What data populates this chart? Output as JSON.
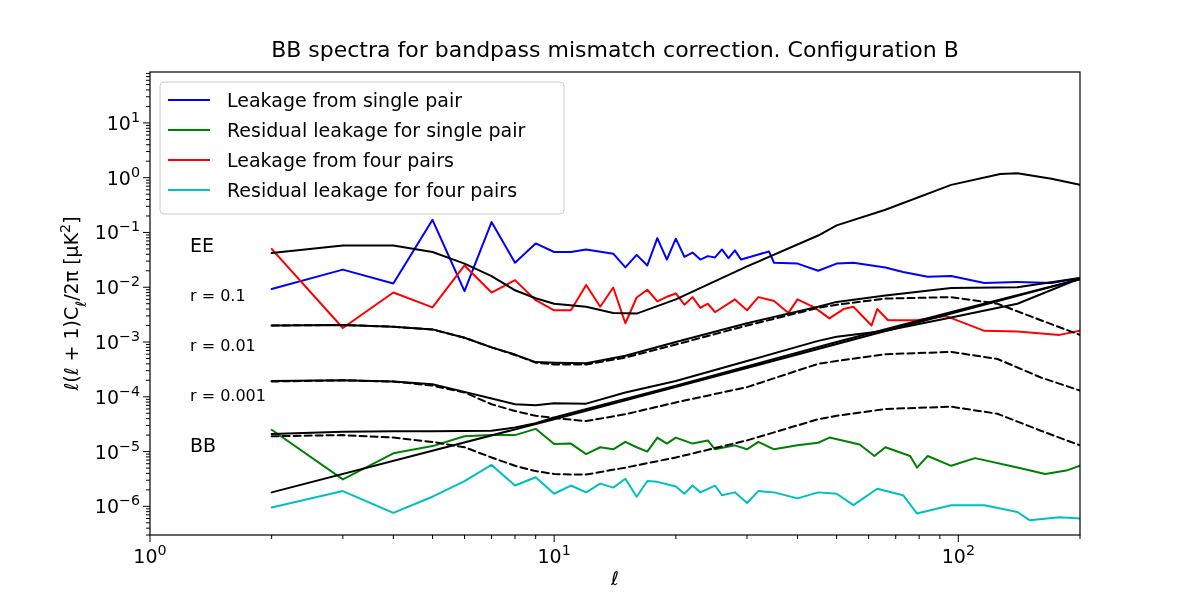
{
  "chart_data": {
    "type": "line",
    "title": "BB spectra for bandpass mismatch correction. Configuration B",
    "xlabel": "ℓ",
    "ylabel": "ℓ(ℓ + 1)C$_{ℓ}$/2π [μK$^{2}$]",
    "log": "xy",
    "grid": false,
    "legend": "top left",
    "marker": "none",
    "xlim": [
      1,
      200
    ],
    "xticks": [
      {
        "value": 1,
        "label": "10$^{0}$"
      },
      {
        "value": 10,
        "label": "10$^{1}$"
      },
      {
        "value": 100,
        "label": "10$^{2}$"
      }
    ],
    "ylim": [
      3e-07,
      85
    ],
    "yticks": [
      {
        "value": 1e-06,
        "label": "10$^{−6}$"
      },
      {
        "value": 1e-05,
        "label": "10$^{−5}$"
      },
      {
        "value": 0.0001,
        "label": "10$^{−4}$"
      },
      {
        "value": 0.001,
        "label": "10$^{−3}$"
      },
      {
        "value": 0.01,
        "label": "10$^{−2}$"
      },
      {
        "value": 0.1,
        "label": "10$^{−1}$"
      },
      {
        "value": 1,
        "label": "10$^{0}$"
      },
      {
        "value": 10,
        "label": "10$^{1}$"
      }
    ],
    "annotations": [
      "EE",
      "r = 0.1",
      "r = 0.01",
      "r = 0.001",
      "BB"
    ],
    "series": [
      {
        "name": "Leakage from single pair",
        "color": "#0000ff",
        "x": [
          2,
          3,
          4,
          5,
          6,
          7,
          8,
          9,
          10,
          11,
          12,
          14,
          15,
          16,
          17,
          18,
          19,
          20,
          21,
          22,
          23,
          24,
          25,
          26,
          27,
          28,
          29,
          34,
          35,
          40,
          45,
          50,
          55,
          66,
          73,
          84,
          96,
          116,
          140,
          170,
          200
        ],
        "values": [
          0.0093,
          0.021,
          0.0117,
          0.17,
          0.0085,
          0.155,
          0.028,
          0.063,
          0.044,
          0.044,
          0.049,
          0.041,
          0.023,
          0.039,
          0.025,
          0.079,
          0.032,
          0.077,
          0.036,
          0.043,
          0.032,
          0.037,
          0.035,
          0.049,
          0.034,
          0.047,
          0.032,
          0.045,
          0.028,
          0.027,
          0.02,
          0.027,
          0.028,
          0.023,
          0.019,
          0.0155,
          0.016,
          0.012,
          0.0125,
          0.012,
          0.0148
        ]
      },
      {
        "name": "Residual leakage for single pair",
        "color": "#008000",
        "x": [
          2,
          3,
          4,
          5,
          6,
          7,
          8,
          9,
          10,
          11,
          12,
          13,
          14,
          15,
          16,
          17,
          18,
          19,
          20,
          22,
          24,
          25,
          28,
          30,
          32,
          35,
          40,
          45,
          48,
          57,
          62,
          66,
          76,
          79,
          84,
          96,
          110,
          140,
          164,
          185,
          200
        ],
        "values": [
          2.5e-05,
          3.1e-06,
          9.3e-06,
          1.26e-05,
          1.9e-05,
          2e-05,
          2e-05,
          2.6e-05,
          1.37e-05,
          1.4e-05,
          9e-06,
          1.2e-05,
          1.1e-05,
          1.5e-05,
          1.2e-05,
          1e-05,
          1.8e-05,
          1.4e-05,
          1.8e-05,
          1.4e-05,
          1.6e-05,
          1.1e-05,
          1.3e-05,
          1.1e-05,
          1.5e-05,
          1.1e-05,
          1.3e-05,
          1.45e-05,
          1.8e-05,
          1.35e-05,
          8.3e-06,
          1.2e-05,
          8.3e-06,
          5.1e-06,
          8.3e-06,
          5.5e-06,
          7.6e-06,
          5.1e-06,
          3.9e-06,
          4.5e-06,
          5.5e-06
        ]
      },
      {
        "name": "Leakage from four pairs",
        "color": "#ff0000",
        "x": [
          2,
          3,
          4,
          5,
          6,
          7,
          8,
          9,
          10,
          11,
          12,
          13,
          14,
          15,
          16,
          17,
          18,
          19,
          20,
          21,
          22,
          23,
          24,
          25,
          28,
          30,
          32,
          35,
          38,
          40,
          44,
          48,
          52,
          55,
          61,
          63,
          67,
          79,
          93,
          116,
          140,
          178,
          200
        ],
        "values": [
          0.05,
          0.0018,
          0.008,
          0.0043,
          0.025,
          0.008,
          0.0135,
          0.0058,
          0.0038,
          0.0038,
          0.011,
          0.0044,
          0.0099,
          0.0022,
          0.0065,
          0.009,
          0.0055,
          0.0067,
          0.0077,
          0.0048,
          0.0066,
          0.0042,
          0.005,
          0.0035,
          0.006,
          0.0038,
          0.0066,
          0.0056,
          0.0034,
          0.006,
          0.0043,
          0.0027,
          0.004,
          0.0044,
          0.002,
          0.004,
          0.0025,
          0.0025,
          0.003,
          0.0016,
          0.00155,
          0.00135,
          0.0016
        ]
      },
      {
        "name": "Residual leakage for four pairs",
        "color": "#00bfbf",
        "x": [
          2,
          3,
          4,
          5,
          6,
          7,
          8,
          9,
          10,
          11,
          12,
          13,
          14,
          15,
          16,
          17,
          18,
          20,
          21,
          22,
          23,
          25,
          26,
          28,
          30,
          32,
          35,
          40,
          45,
          50,
          55,
          63,
          73,
          79,
          96,
          116,
          140,
          150,
          178,
          200
        ],
        "values": [
          9.5e-07,
          1.9e-06,
          7.6e-07,
          1.5e-06,
          2.9e-06,
          5.7e-06,
          2.4e-06,
          3.4e-06,
          1.7e-06,
          2.4e-06,
          1.8e-06,
          2.6e-06,
          2.2e-06,
          3.2e-06,
          1.5e-06,
          2.9e-06,
          2.8e-06,
          2.3e-06,
          1.7e-06,
          2.4e-06,
          1.8e-06,
          2.4e-06,
          1.6e-06,
          1.8e-06,
          1.15e-06,
          1.9e-06,
          1.8e-06,
          1.4e-06,
          1.8e-06,
          1.7e-06,
          1.05e-06,
          2.1e-06,
          1.6e-06,
          7.4e-07,
          1.05e-06,
          1.05e-06,
          7.9e-07,
          5.6e-07,
          6.3e-07,
          6e-07
        ]
      },
      {
        "color": "#000000",
        "x": [
          2,
          3,
          4,
          5,
          6,
          7,
          8,
          9,
          10,
          12,
          14,
          16,
          20,
          30,
          45,
          50,
          66,
          96,
          127,
          140,
          170,
          200
        ],
        "values": [
          0.042,
          0.058,
          0.058,
          0.044,
          0.027,
          0.016,
          0.0088,
          0.0063,
          0.005,
          0.0044,
          0.0034,
          0.0033,
          0.006,
          0.024,
          0.088,
          0.135,
          0.26,
          0.74,
          1.17,
          1.2,
          0.96,
          0.74
        ]
      },
      {
        "color": "#000000",
        "x": [
          2,
          3,
          4,
          5,
          6,
          7,
          8,
          9,
          10,
          12,
          15,
          20,
          30,
          45,
          50,
          66,
          96,
          140,
          200
        ],
        "values": [
          0.002,
          0.00205,
          0.0019,
          0.0017,
          0.0012,
          0.0008,
          0.00059,
          0.00043,
          0.00042,
          0.00041,
          0.00056,
          0.001,
          0.0022,
          0.0044,
          0.0054,
          0.0071,
          0.0097,
          0.01,
          0.0148
        ]
      },
      {
        "color": "#000000",
        "line_style": "dashed",
        "x": [
          2,
          3,
          4,
          5,
          6,
          7,
          8,
          9,
          10,
          12,
          15,
          20,
          30,
          45,
          50,
          66,
          96,
          125,
          160,
          200
        ],
        "values": [
          0.002,
          0.00205,
          0.0019,
          0.0017,
          0.0012,
          0.0008,
          0.00058,
          0.00042,
          0.00039,
          0.00039,
          0.00052,
          0.0009,
          0.002,
          0.0042,
          0.0048,
          0.0062,
          0.0066,
          0.005,
          0.0025,
          0.00135
        ]
      },
      {
        "color": "#000000",
        "x": [
          2,
          3,
          4,
          5,
          6,
          7,
          8,
          9,
          10,
          12,
          15,
          20,
          30,
          45,
          50,
          66,
          96,
          140,
          200
        ],
        "values": [
          0.000194,
          0.0002,
          0.00019,
          0.00017,
          0.000123,
          9.3e-05,
          7.3e-05,
          7e-05,
          7.6e-05,
          7.5e-05,
          0.00012,
          0.000195,
          0.00045,
          0.00105,
          0.00125,
          0.0016,
          0.0028,
          0.005,
          0.0145
        ]
      },
      {
        "color": "#000000",
        "line_style": "dashed",
        "x": [
          2,
          3,
          4,
          5,
          6,
          7,
          8,
          9,
          10,
          12,
          15,
          20,
          30,
          45,
          50,
          66,
          96,
          125,
          160,
          200
        ],
        "values": [
          0.00019,
          0.0002,
          0.00019,
          0.00016,
          0.00012,
          7.3e-05,
          5.5e-05,
          4.5e-05,
          4.1e-05,
          3.6e-05,
          4.8e-05,
          7.9e-05,
          0.00015,
          0.0004,
          0.00045,
          0.0006,
          0.00066,
          0.00049,
          0.000225,
          0.00013
        ]
      },
      {
        "color": "#000000",
        "x": [
          2,
          3,
          4,
          5,
          7,
          8,
          9,
          10,
          20,
          50,
          100,
          200
        ],
        "values": [
          2.1e-05,
          2.3e-05,
          2.35e-05,
          2.35e-05,
          2.4e-05,
          2.75e-05,
          3.3e-05,
          4.2e-05,
          0.00016,
          0.001,
          0.0038,
          0.014
        ]
      },
      {
        "color": "#000000",
        "line_style": "dashed",
        "x": [
          2,
          3,
          4,
          5,
          6,
          7,
          8,
          9,
          10,
          11,
          12,
          15,
          20,
          30,
          45,
          50,
          66,
          96,
          125,
          160,
          200
        ],
        "values": [
          1.9e-05,
          2e-05,
          1.8e-05,
          1.5e-05,
          1.2e-05,
          7.8e-06,
          5.5e-06,
          4.4e-06,
          3.9e-06,
          3.8e-06,
          3.8e-06,
          5.1e-06,
          7.8e-06,
          1.6e-05,
          3.9e-05,
          4.5e-05,
          6e-05,
          6.6e-05,
          4.9e-05,
          2.4e-05,
          1.3e-05
        ]
      },
      {
        "color": "#000000",
        "x": [
          2,
          10,
          200
        ],
        "values": [
          1.8e-06,
          3.9e-05,
          0.014
        ]
      }
    ]
  }
}
